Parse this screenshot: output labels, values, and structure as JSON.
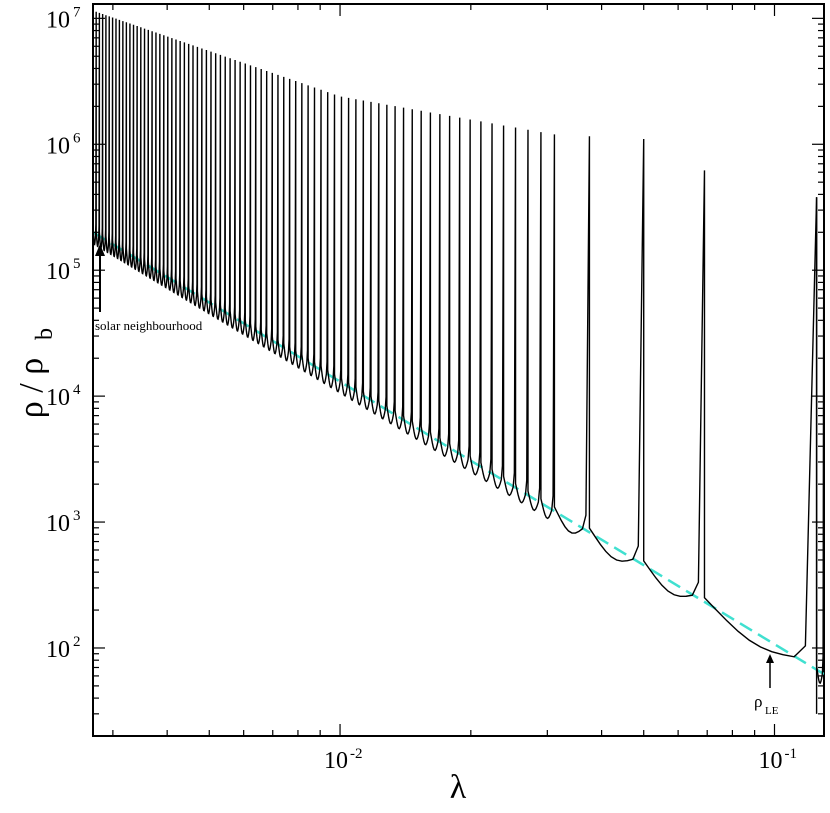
{
  "chart_data": {
    "type": "line",
    "xscale": "log",
    "yscale": "log",
    "xlim": [
      0.0027,
      0.13
    ],
    "ylim": [
      20,
      13000000
    ],
    "xlabel": "λ",
    "ylabel_main": "ρ / ρ",
    "ylabel_sub": "b",
    "xticks": [
      {
        "value": 0.01,
        "base": "10",
        "exp": "-2"
      },
      {
        "value": 0.1,
        "base": "10",
        "exp": "-1"
      }
    ],
    "yticks": [
      {
        "value": 100,
        "base": "10",
        "exp": "2"
      },
      {
        "value": 1000,
        "base": "10",
        "exp": "3"
      },
      {
        "value": 10000,
        "base": "10",
        "exp": "4"
      },
      {
        "value": 100000,
        "base": "10",
        "exp": "5"
      },
      {
        "value": 1000000,
        "base": "10",
        "exp": "6"
      },
      {
        "value": 10000000,
        "base": "10",
        "exp": "7"
      }
    ],
    "grid": false,
    "series": [
      {
        "kind": "reference-line",
        "style": "dashed",
        "color": "#40e0d0",
        "x": [
          0.0027,
          0.13
        ],
        "y": [
          200000,
          62
        ]
      },
      {
        "kind": "sawtooth-density",
        "style": "solid",
        "color": "#000000",
        "note_points": [
          {
            "x": 0.0027,
            "y": 11500000
          },
          {
            "x": 0.01,
            "y": 2400000
          },
          {
            "x": 0.031,
            "y": 1200000
          },
          {
            "x": 0.05,
            "y": 1100000
          },
          {
            "x": 0.069,
            "y": 620000
          },
          {
            "x": 0.125,
            "y": 380000
          }
        ],
        "troughs": [
          {
            "x": 0.0375,
            "y": 900
          },
          {
            "x": 0.06,
            "y": 400
          },
          {
            "x": 0.1,
            "y": 145
          }
        ]
      }
    ],
    "annotations": [
      {
        "name": "solar-neighbourhood",
        "text": "solar neighbourhood",
        "x": 0.0027,
        "y": 200000
      },
      {
        "name": "rho-le",
        "main": "ρ",
        "sub": "LE",
        "x": 0.1,
        "y": 100
      }
    ]
  }
}
